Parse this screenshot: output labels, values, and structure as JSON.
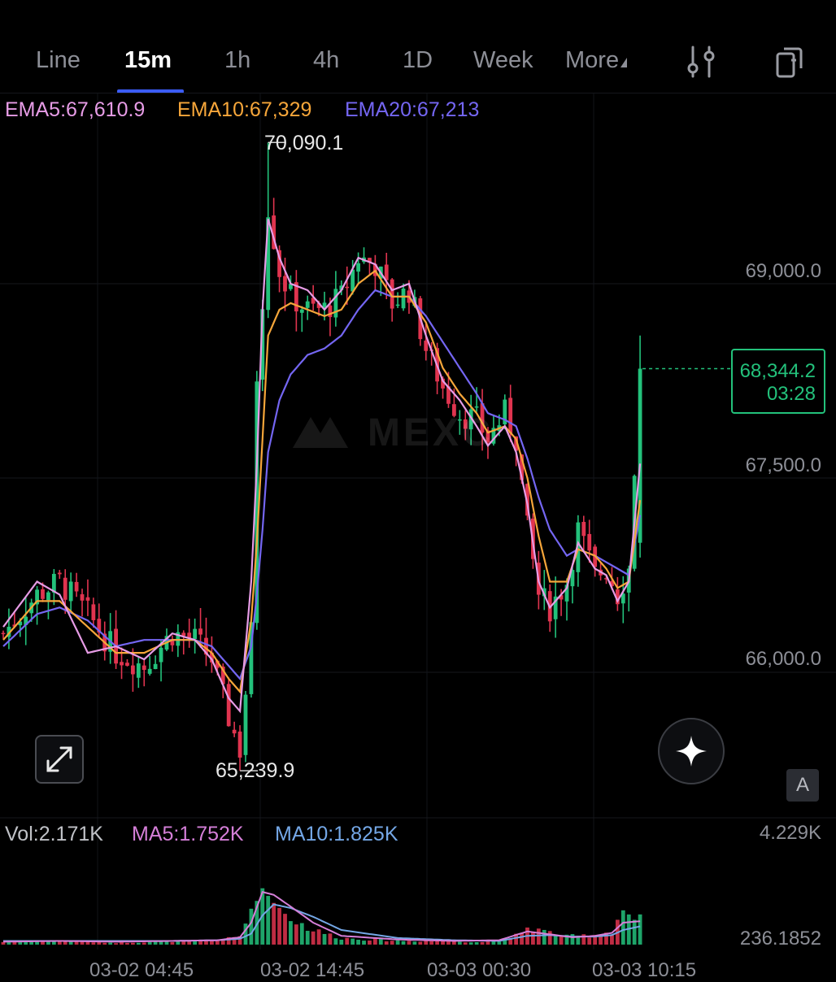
{
  "tabs": [
    "Line",
    "15m",
    "1h",
    "4h",
    "1D",
    "Week",
    "More"
  ],
  "active_tab": "15m",
  "icons": {
    "settings": "sliders-icon",
    "layout": "copy-layout-icon",
    "expand": "expand-icon",
    "ai": "sparkle-icon",
    "auto_scale": "auto-scale-icon"
  },
  "indicators": {
    "ema5": "EMA5:67,610.9",
    "ema10": "EMA10:67,329",
    "ema20": "EMA20:67,213"
  },
  "colors": {
    "up": "#23c17b",
    "down": "#e0344f",
    "ema5": "#e79ce6",
    "ema10": "#f6a63a",
    "ema20": "#7466f2",
    "vol_ma5": "#d57fd8",
    "vol_ma10": "#74a7e6"
  },
  "high_label": "70,090.1",
  "low_label": "65,239.9",
  "price_axis": [
    "69,000.0",
    "67,500.0",
    "66,000.0"
  ],
  "last_price": {
    "value": "68,344.2",
    "countdown": "03:28"
  },
  "auto_button": "A",
  "volume": {
    "vol": "Vol:2.171K",
    "ma5": "MA5:1.752K",
    "ma10": "MA10:1.825K",
    "axis_top": "4.229K",
    "axis_bottom": "236.1852"
  },
  "time_axis": [
    "03-02 04:45",
    "03-02 14:45",
    "03-03 00:30",
    "03-03 10:15"
  ],
  "watermark": "MEXC",
  "chart_data": {
    "type": "candlestick",
    "interval": "15m",
    "y_ticks": [
      69000,
      67500,
      66000
    ],
    "high": 70090.1,
    "low": 65239.9,
    "last": 68344.2,
    "close_path": [
      [
        0,
        66300
      ],
      [
        6,
        66600
      ],
      [
        10,
        66700
      ],
      [
        15,
        66450
      ],
      [
        20,
        66150
      ],
      [
        25,
        66050
      ],
      [
        30,
        66300
      ],
      [
        34,
        66250
      ],
      [
        37,
        66100
      ],
      [
        40,
        65650
      ],
      [
        42,
        65400
      ],
      [
        44,
        66300
      ],
      [
        45,
        68300
      ],
      [
        46,
        68900
      ],
      [
        47,
        69600
      ],
      [
        49,
        69100
      ],
      [
        51,
        68900
      ],
      [
        54,
        68800
      ],
      [
        57,
        68800
      ],
      [
        60,
        68900
      ],
      [
        63,
        69200
      ],
      [
        66,
        69150
      ],
      [
        69,
        68850
      ],
      [
        72,
        68950
      ],
      [
        75,
        68500
      ],
      [
        78,
        68200
      ],
      [
        81,
        68000
      ],
      [
        84,
        67950
      ],
      [
        86,
        67800
      ],
      [
        89,
        68000
      ],
      [
        91,
        67800
      ],
      [
        93,
        67100
      ],
      [
        95,
        66600
      ],
      [
        97,
        66500
      ],
      [
        100,
        66700
      ],
      [
        102,
        67100
      ],
      [
        105,
        66750
      ],
      [
        107,
        66800
      ],
      [
        109,
        66600
      ],
      [
        111,
        66800
      ],
      [
        113,
        68344.2
      ]
    ],
    "ema5": [
      [
        0,
        66350
      ],
      [
        6,
        66700
      ],
      [
        10,
        66600
      ],
      [
        15,
        66150
      ],
      [
        20,
        66200
      ],
      [
        25,
        66100
      ],
      [
        30,
        66300
      ],
      [
        34,
        66250
      ],
      [
        37,
        66100
      ],
      [
        40,
        65800
      ],
      [
        42,
        65700
      ],
      [
        44,
        66700
      ],
      [
        45,
        67600
      ],
      [
        46,
        68800
      ],
      [
        47,
        69500
      ],
      [
        49,
        69200
      ],
      [
        51,
        69000
      ],
      [
        54,
        68950
      ],
      [
        57,
        68800
      ],
      [
        60,
        68950
      ],
      [
        63,
        69200
      ],
      [
        66,
        69150
      ],
      [
        69,
        68950
      ],
      [
        72,
        69000
      ],
      [
        75,
        68600
      ],
      [
        78,
        68250
      ],
      [
        81,
        68100
      ],
      [
        84,
        67900
      ],
      [
        86,
        67750
      ],
      [
        89,
        67900
      ],
      [
        91,
        67700
      ],
      [
        93,
        67300
      ],
      [
        95,
        66700
      ],
      [
        97,
        66500
      ],
      [
        100,
        66650
      ],
      [
        102,
        67000
      ],
      [
        105,
        66800
      ],
      [
        107,
        66750
      ],
      [
        109,
        66550
      ],
      [
        111,
        66700
      ],
      [
        113,
        67610.9
      ]
    ],
    "ema10": [
      [
        0,
        66250
      ],
      [
        6,
        66550
      ],
      [
        10,
        66550
      ],
      [
        15,
        66350
      ],
      [
        20,
        66150
      ],
      [
        25,
        66150
      ],
      [
        30,
        66250
      ],
      [
        34,
        66250
      ],
      [
        37,
        66150
      ],
      [
        40,
        65950
      ],
      [
        42,
        65850
      ],
      [
        44,
        66400
      ],
      [
        45,
        67000
      ],
      [
        46,
        67800
      ],
      [
        47,
        68600
      ],
      [
        49,
        68800
      ],
      [
        51,
        68850
      ],
      [
        54,
        68800
      ],
      [
        57,
        68750
      ],
      [
        60,
        68800
      ],
      [
        63,
        69000
      ],
      [
        66,
        69100
      ],
      [
        69,
        68900
      ],
      [
        72,
        68900
      ],
      [
        75,
        68700
      ],
      [
        78,
        68350
      ],
      [
        81,
        68150
      ],
      [
        84,
        68000
      ],
      [
        86,
        67850
      ],
      [
        89,
        67900
      ],
      [
        91,
        67800
      ],
      [
        93,
        67500
      ],
      [
        95,
        67050
      ],
      [
        97,
        66700
      ],
      [
        100,
        66700
      ],
      [
        102,
        66950
      ],
      [
        105,
        66900
      ],
      [
        107,
        66800
      ],
      [
        109,
        66650
      ],
      [
        111,
        66700
      ],
      [
        113,
        67329
      ]
    ],
    "ema20": [
      [
        0,
        66200
      ],
      [
        6,
        66450
      ],
      [
        10,
        66500
      ],
      [
        15,
        66400
      ],
      [
        20,
        66200
      ],
      [
        25,
        66250
      ],
      [
        30,
        66250
      ],
      [
        34,
        66250
      ],
      [
        37,
        66200
      ],
      [
        40,
        66050
      ],
      [
        42,
        65950
      ],
      [
        44,
        66200
      ],
      [
        45,
        66600
      ],
      [
        46,
        67100
      ],
      [
        47,
        67700
      ],
      [
        49,
        68100
      ],
      [
        51,
        68300
      ],
      [
        54,
        68450
      ],
      [
        57,
        68500
      ],
      [
        60,
        68600
      ],
      [
        63,
        68800
      ],
      [
        66,
        68950
      ],
      [
        69,
        68900
      ],
      [
        72,
        68900
      ],
      [
        75,
        68750
      ],
      [
        78,
        68550
      ],
      [
        81,
        68350
      ],
      [
        84,
        68150
      ],
      [
        86,
        68000
      ],
      [
        89,
        67950
      ],
      [
        91,
        67900
      ],
      [
        93,
        67650
      ],
      [
        95,
        67350
      ],
      [
        97,
        67100
      ],
      [
        100,
        66900
      ],
      [
        102,
        66950
      ],
      [
        105,
        66900
      ],
      [
        107,
        66850
      ],
      [
        109,
        66800
      ],
      [
        111,
        66750
      ],
      [
        113,
        67213
      ]
    ],
    "volume_peaks": [
      [
        0,
        0.04
      ],
      [
        10,
        0.06
      ],
      [
        20,
        0.03
      ],
      [
        30,
        0.05
      ],
      [
        38,
        0.06
      ],
      [
        42,
        0.12
      ],
      [
        44,
        0.55
      ],
      [
        45,
        0.9
      ],
      [
        46,
        0.7
      ],
      [
        47,
        1.0
      ],
      [
        48,
        0.62
      ],
      [
        50,
        0.5
      ],
      [
        52,
        0.35
      ],
      [
        55,
        0.22
      ],
      [
        60,
        0.1
      ],
      [
        65,
        0.08
      ],
      [
        70,
        0.06
      ],
      [
        80,
        0.05
      ],
      [
        85,
        0.04
      ],
      [
        90,
        0.08
      ],
      [
        93,
        0.25
      ],
      [
        95,
        0.22
      ],
      [
        100,
        0.12
      ],
      [
        105,
        0.15
      ],
      [
        108,
        0.2
      ],
      [
        110,
        0.55
      ],
      [
        112,
        0.35
      ],
      [
        113,
        0.38
      ]
    ],
    "volume_ma5": [
      [
        0,
        0.04
      ],
      [
        10,
        0.05
      ],
      [
        20,
        0.04
      ],
      [
        30,
        0.05
      ],
      [
        38,
        0.06
      ],
      [
        42,
        0.1
      ],
      [
        44,
        0.3
      ],
      [
        46,
        0.72
      ],
      [
        48,
        0.68
      ],
      [
        51,
        0.52
      ],
      [
        55,
        0.3
      ],
      [
        60,
        0.12
      ],
      [
        70,
        0.07
      ],
      [
        80,
        0.05
      ],
      [
        88,
        0.06
      ],
      [
        93,
        0.18
      ],
      [
        97,
        0.14
      ],
      [
        101,
        0.1
      ],
      [
        105,
        0.12
      ],
      [
        108,
        0.16
      ],
      [
        110,
        0.3
      ],
      [
        113,
        0.32
      ]
    ],
    "volume_ma10": [
      [
        0,
        0.05
      ],
      [
        10,
        0.05
      ],
      [
        20,
        0.05
      ],
      [
        30,
        0.05
      ],
      [
        38,
        0.06
      ],
      [
        42,
        0.08
      ],
      [
        44,
        0.15
      ],
      [
        46,
        0.4
      ],
      [
        48,
        0.55
      ],
      [
        51,
        0.5
      ],
      [
        55,
        0.38
      ],
      [
        60,
        0.2
      ],
      [
        70,
        0.09
      ],
      [
        80,
        0.06
      ],
      [
        88,
        0.05
      ],
      [
        93,
        0.12
      ],
      [
        97,
        0.13
      ],
      [
        101,
        0.11
      ],
      [
        105,
        0.11
      ],
      [
        108,
        0.13
      ],
      [
        110,
        0.2
      ],
      [
        113,
        0.25
      ]
    ]
  }
}
